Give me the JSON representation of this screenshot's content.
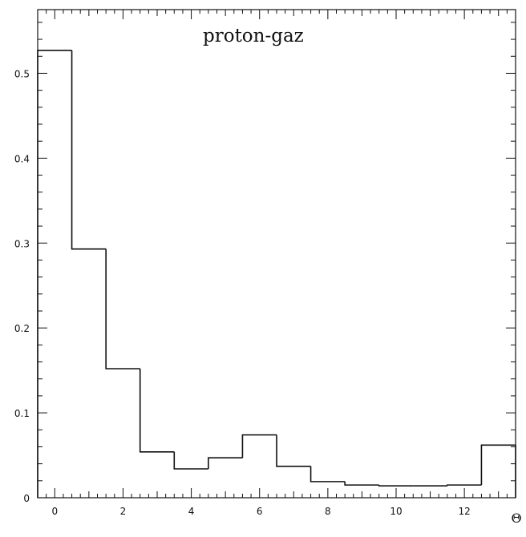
{
  "chart_data": {
    "type": "bar",
    "histogram": true,
    "title": "proton-gaz",
    "corner_label": "Θ",
    "xlabel": "",
    "ylabel": "",
    "bin_edges": [
      -0.5,
      0.5,
      1.5,
      2.5,
      3.5,
      4.5,
      5.5,
      6.5,
      7.5,
      8.5,
      9.5,
      10.5,
      11.5,
      12.5,
      13.5
    ],
    "categories": [
      "0",
      "1",
      "2",
      "3",
      "4",
      "5",
      "6",
      "7",
      "8",
      "9",
      "10",
      "11",
      "12",
      "13"
    ],
    "values": [
      0.527,
      0.293,
      0.152,
      0.054,
      0.034,
      0.047,
      0.074,
      0.037,
      0.019,
      0.015,
      0.014,
      0.014,
      0.015,
      0.062
    ],
    "xlim": [
      -0.5,
      13.5
    ],
    "ylim": [
      0,
      0.575
    ],
    "x_tick_values": [
      0,
      2,
      4,
      6,
      8,
      10,
      12
    ],
    "x_tick_labels": [
      "0",
      "2",
      "4",
      "6",
      "8",
      "10",
      "12"
    ],
    "y_tick_values": [
      0,
      0.1,
      0.2,
      0.3,
      0.4,
      0.5
    ],
    "y_tick_labels": [
      "0",
      "0.1",
      "0.2",
      "0.3",
      "0.4",
      "0.5"
    ],
    "grid": false,
    "line_color": "#111111"
  }
}
